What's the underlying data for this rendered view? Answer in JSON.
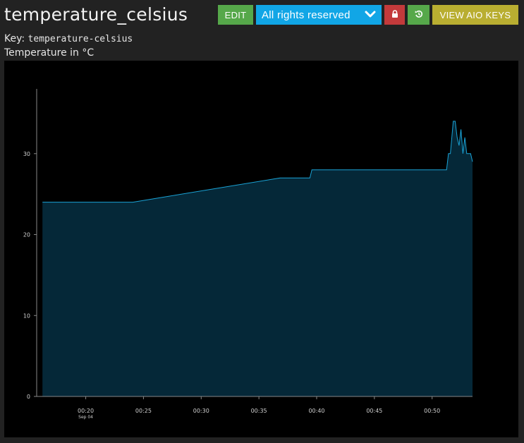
{
  "feed": {
    "title": "temperature_celsius",
    "key_label": "Key:",
    "key_value": "temperature-celsius",
    "description": "Temperature in °C"
  },
  "toolbar": {
    "edit_label": "EDIT",
    "license_label": "All rights reserved",
    "view_keys_label": "VIEW AIO KEYS",
    "colors": {
      "edit": "#56a84a",
      "license": "#11a6e6",
      "lock": "#c33a3b",
      "history": "#56a84a",
      "keys": "#b9ae31"
    }
  },
  "chart_data": {
    "type": "area",
    "title": "",
    "xlabel": "",
    "ylabel": "",
    "ylim": [
      0,
      38
    ],
    "yticks": [
      0,
      10,
      20,
      30
    ],
    "ytick_labels": [
      "0",
      "10",
      "20",
      "30"
    ],
    "xlim": [
      "00:15:45",
      "00:53:30"
    ],
    "xticks": [
      "00:20:00",
      "00:25:00",
      "00:30:00",
      "00:35:00",
      "00:40:00",
      "00:45:00",
      "00:50:00"
    ],
    "xtick_labels": [
      "00:20",
      "00:25",
      "00:30",
      "00:35",
      "00:40",
      "00:45",
      "00:50"
    ],
    "xtick_sublabels": [
      "Sep 04",
      "",
      "",
      "",
      "",
      "",
      ""
    ],
    "grid": false,
    "line_color": "#1aa3d6",
    "fill_color": "#052838",
    "series": [
      {
        "x": [
          "00:16:15",
          "00:24:05",
          "00:36:50",
          "00:39:25",
          "00:39:35",
          "00:51:15",
          "00:51:25",
          "00:51:35",
          "00:51:50",
          "00:52:00",
          "00:52:10",
          "00:52:20",
          "00:52:30",
          "00:52:40",
          "00:52:50",
          "00:53:00",
          "00:53:20",
          "00:53:30"
        ],
        "y": [
          24,
          24,
          27,
          27,
          28,
          28,
          30,
          30,
          34,
          34,
          32,
          31,
          33,
          30,
          32,
          30,
          30,
          29
        ]
      }
    ]
  }
}
